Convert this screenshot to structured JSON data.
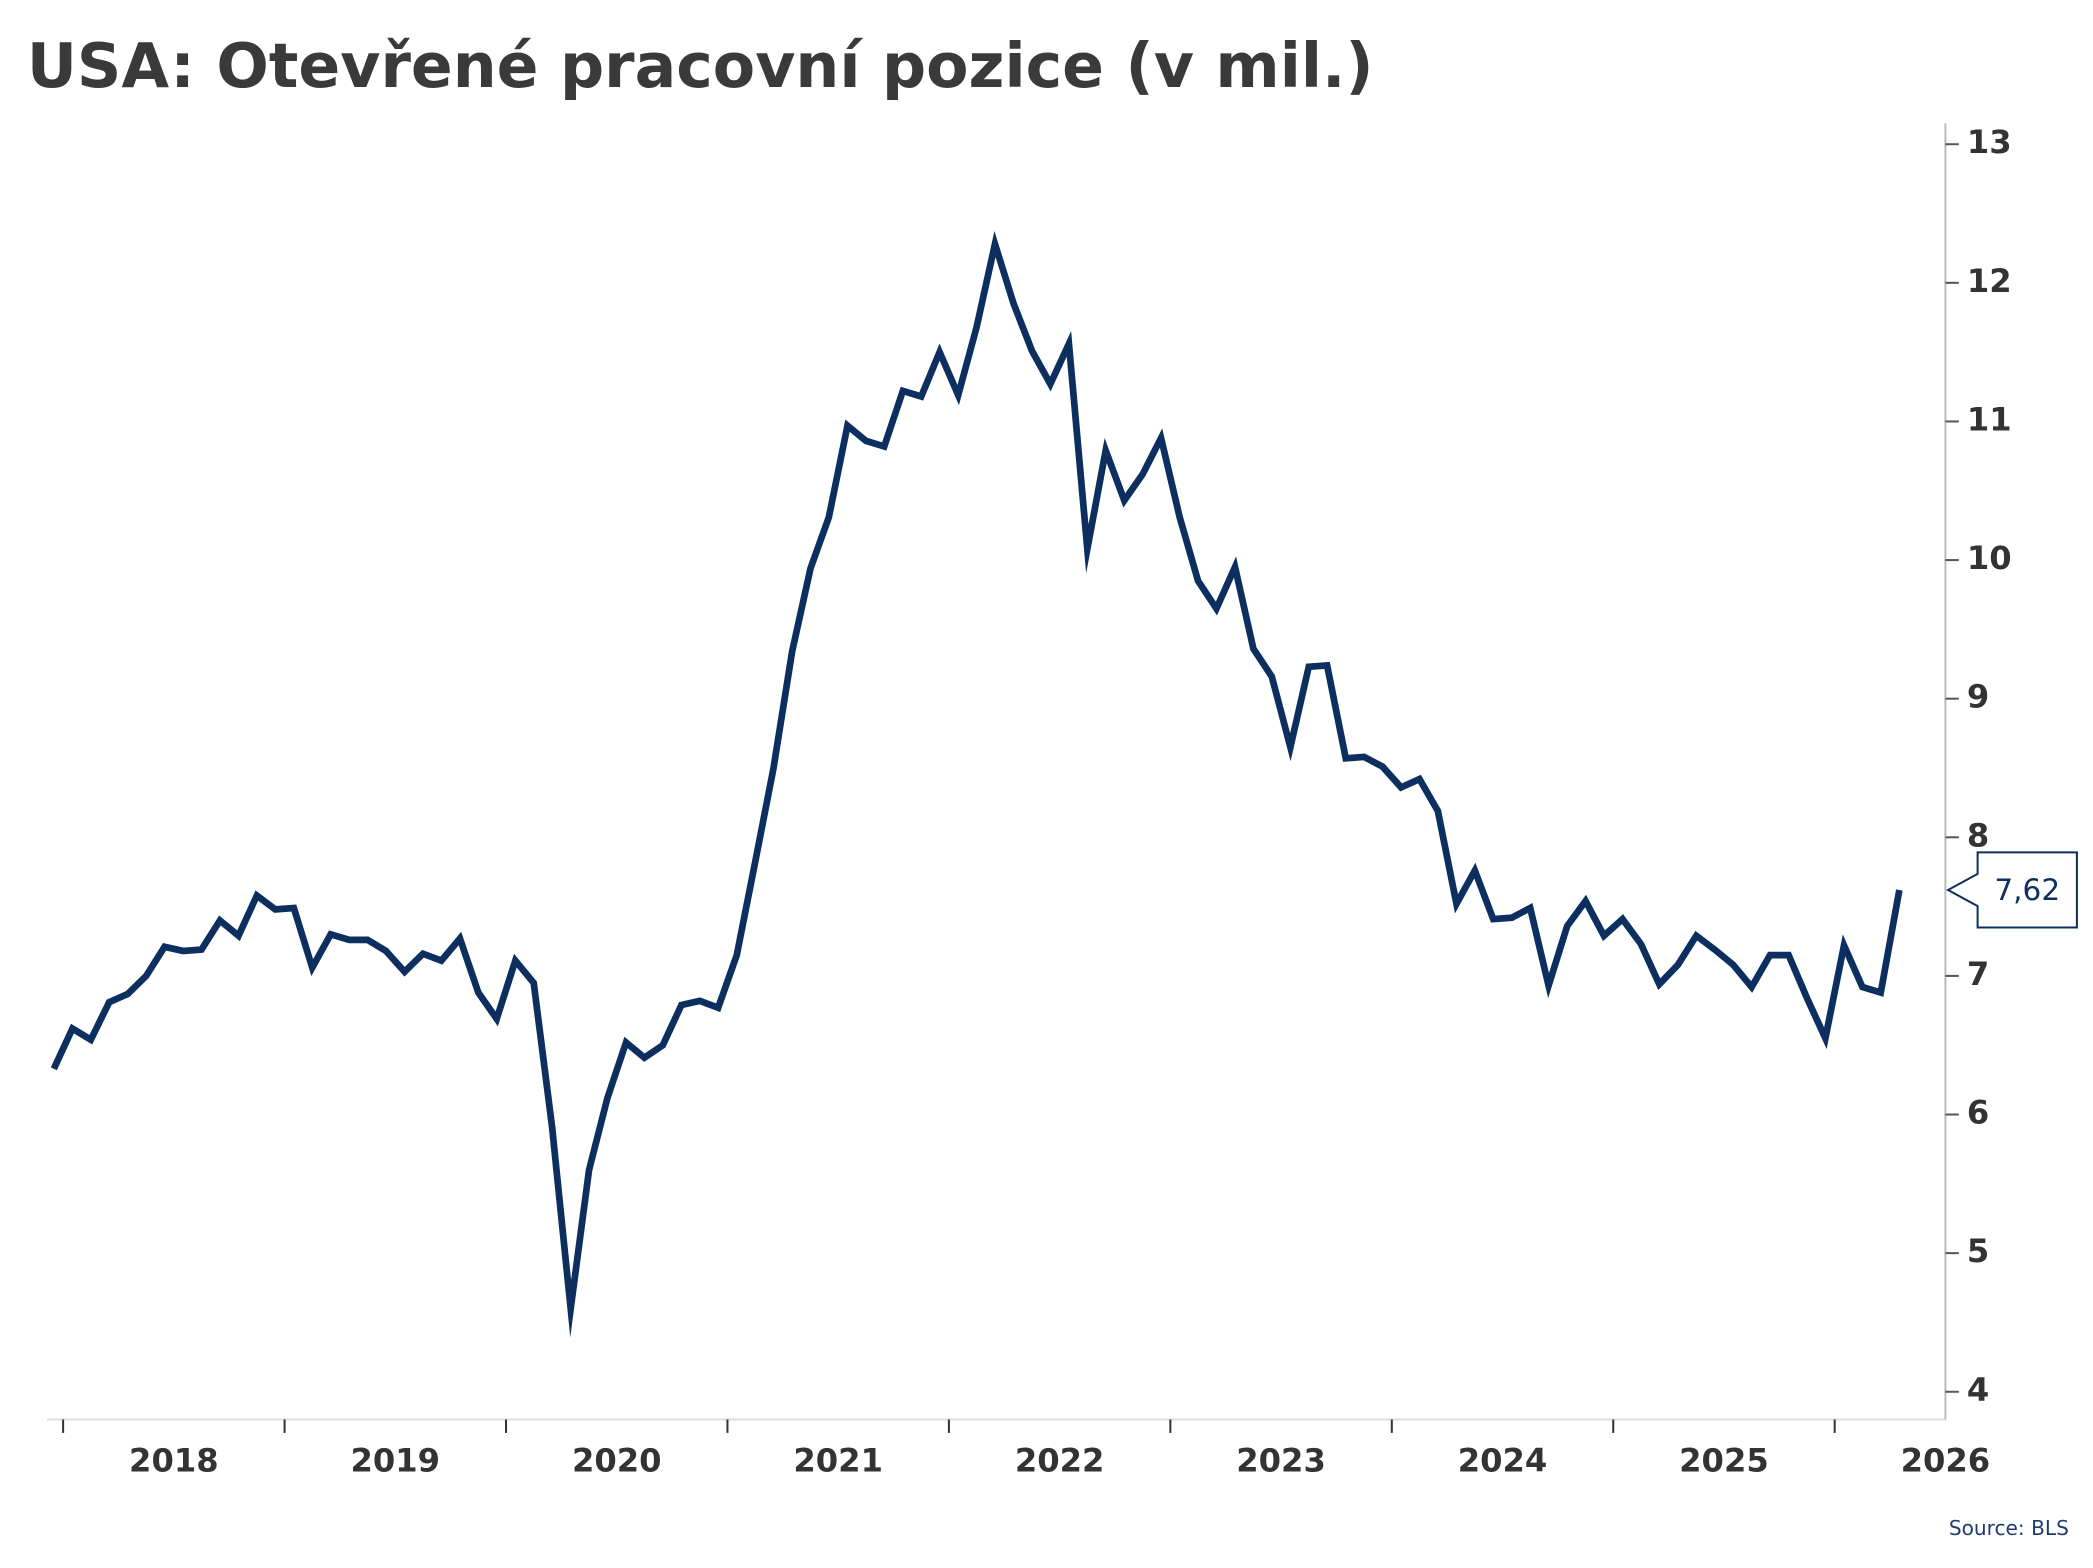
{
  "chart_data": {
    "type": "line",
    "title": "USA: Otevřené pracovní pozice (v mil.)",
    "source": "Source: BLS",
    "color": "#0c2f5f",
    "x": [
      2017.958,
      2018.042,
      2018.125,
      2018.208,
      2018.292,
      2018.375,
      2018.458,
      2018.542,
      2018.625,
      2018.708,
      2018.792,
      2018.875,
      2018.958,
      2019.042,
      2019.125,
      2019.208,
      2019.292,
      2019.375,
      2019.458,
      2019.542,
      2019.625,
      2019.708,
      2019.792,
      2019.875,
      2019.958,
      2020.042,
      2020.125,
      2020.208,
      2020.292,
      2020.375,
      2020.458,
      2020.542,
      2020.625,
      2020.708,
      2020.792,
      2020.875,
      2020.958,
      2021.042,
      2021.125,
      2021.208,
      2021.292,
      2021.375,
      2021.458,
      2021.542,
      2021.625,
      2021.708,
      2021.792,
      2021.875,
      2021.958,
      2022.042,
      2022.125,
      2022.208,
      2022.292,
      2022.375,
      2022.458,
      2022.542,
      2022.625,
      2022.708,
      2022.792,
      2022.875,
      2022.958,
      2023.042,
      2023.125,
      2023.208,
      2023.292,
      2023.375,
      2023.458,
      2023.542,
      2023.625,
      2023.708,
      2023.792,
      2023.875,
      2023.958,
      2024.042,
      2024.125,
      2024.208,
      2024.292,
      2024.375,
      2024.458,
      2024.542,
      2024.625,
      2024.708,
      2024.792,
      2024.875,
      2024.958,
      2025.042,
      2025.125,
      2025.208,
      2025.292,
      2025.375,
      2025.458,
      2025.542,
      2025.625,
      2025.708,
      2025.792,
      2025.875,
      2025.958,
      2026.042,
      2026.125,
      2026.208,
      2026.292
    ],
    "values": [
      6.33,
      6.62,
      6.54,
      6.81,
      6.87,
      7.0,
      7.21,
      7.18,
      7.19,
      7.4,
      7.29,
      7.58,
      7.48,
      7.49,
      7.06,
      7.3,
      7.26,
      7.26,
      7.18,
      7.03,
      7.16,
      7.11,
      7.27,
      6.88,
      6.69,
      7.11,
      6.95,
      5.91,
      4.6,
      5.6,
      6.12,
      6.52,
      6.41,
      6.5,
      6.79,
      6.82,
      6.77,
      7.15,
      7.82,
      8.5,
      9.34,
      9.94,
      10.31,
      10.97,
      10.86,
      10.82,
      11.22,
      11.18,
      11.5,
      11.19,
      11.68,
      12.28,
      11.85,
      11.51,
      11.27,
      11.56,
      10.08,
      10.79,
      10.43,
      10.62,
      10.88,
      10.31,
      9.85,
      9.65,
      9.95,
      9.36,
      9.16,
      8.65,
      9.23,
      9.24,
      8.57,
      8.58,
      8.51,
      8.36,
      8.42,
      8.19,
      7.52,
      7.76,
      7.41,
      7.42,
      7.49,
      6.93,
      7.36,
      7.54,
      7.29,
      7.41,
      7.23,
      6.94,
      7.08,
      7.29,
      7.19,
      7.08,
      6.92,
      7.15,
      7.15,
      6.84,
      6.55,
      7.22,
      6.92,
      6.88,
      7.62
    ],
    "value_labels": [
      null,
      null,
      null,
      null,
      null,
      null,
      null,
      null,
      null,
      null,
      null,
      null,
      null,
      null,
      null,
      null,
      null,
      null,
      null,
      null,
      null,
      null,
      null,
      null,
      null,
      null,
      null,
      null,
      null,
      null,
      null,
      null,
      null,
      null,
      null,
      null,
      null,
      null,
      null,
      null,
      null,
      null,
      null,
      null,
      null,
      null,
      null,
      null,
      null,
      null,
      null,
      null,
      null,
      null,
      null,
      null,
      null,
      null,
      null,
      null,
      null,
      null,
      null,
      null,
      null,
      null,
      null,
      null,
      null,
      null,
      null,
      null,
      null,
      null,
      null,
      null,
      null,
      null,
      null,
      null,
      null,
      null,
      null,
      null,
      null,
      null,
      null,
      null,
      null,
      null,
      null,
      null,
      null,
      null,
      null,
      null,
      null,
      null,
      null,
      null,
      "7,62"
    ],
    "xlim": [
      2017.927,
      2026.5
    ],
    "xticks": [
      2018,
      2019,
      2020,
      2021,
      2022,
      2023,
      2024,
      2025,
      2026
    ],
    "ylim": [
      3.8,
      13.15
    ],
    "yticks": [
      4,
      5,
      6,
      7,
      8,
      9,
      10,
      11,
      12,
      13
    ],
    "y_axis_side": "right",
    "grid": false
  }
}
